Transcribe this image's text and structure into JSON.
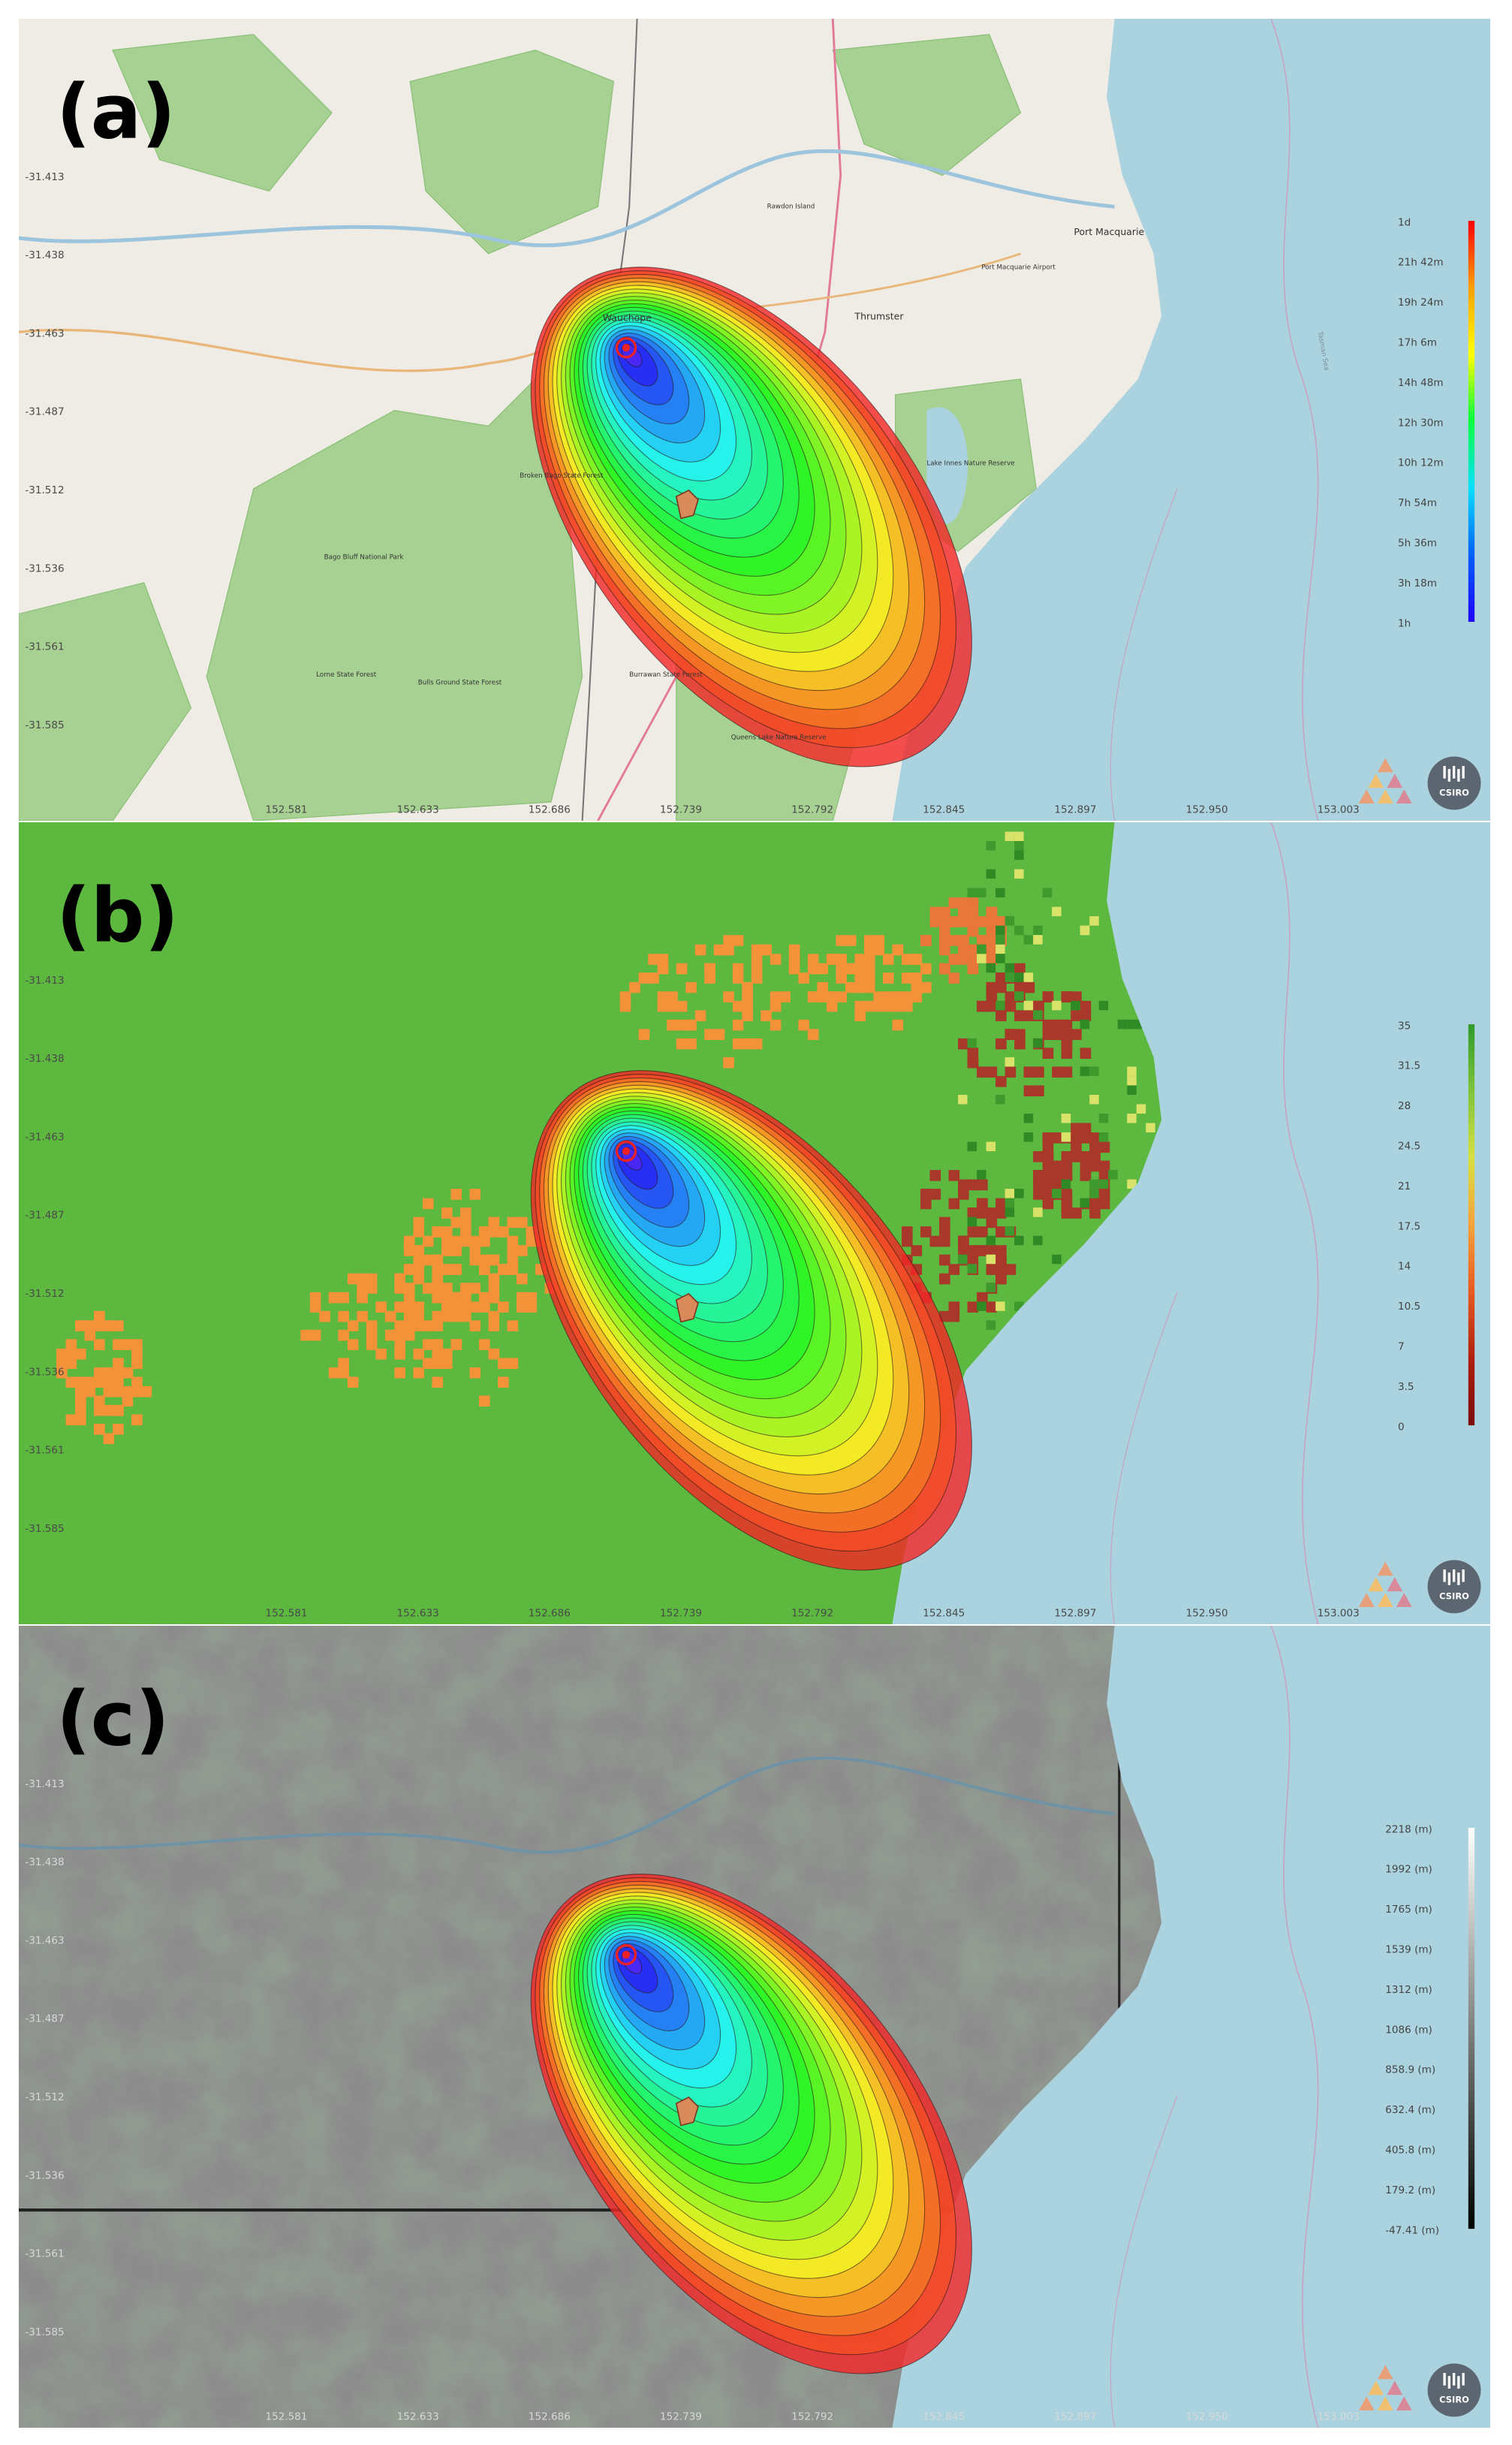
{
  "panels": [
    {
      "label": "(a)",
      "legend": [
        "1d",
        "21h 42m",
        "19h 24m",
        "17h 6m",
        "14h 48m",
        "12h 30m",
        "10h 12m",
        "7h 54m",
        "5h 36m",
        "3h 18m",
        "1h"
      ],
      "places": [
        {
          "name": "Wauchope"
        },
        {
          "name": "Port Macquarie"
        },
        {
          "name": "Thrumster"
        },
        {
          "name": "Rawdon Island"
        },
        {
          "name": "Port Macquarie Airport"
        },
        {
          "name": "Lake Innes Nature Reserve"
        },
        {
          "name": "Broken Bago State Forest"
        },
        {
          "name": "Bago Bluff National Park"
        },
        {
          "name": "Lorne State Forest"
        },
        {
          "name": "Bulls Ground State Forest"
        },
        {
          "name": "Burrawan State Forest"
        },
        {
          "name": "Queens Lake Nature Reserve"
        },
        {
          "name": "Tasman Sea"
        }
      ]
    },
    {
      "label": "(b)",
      "legend": [
        "35",
        "31.5",
        "28",
        "24.5",
        "21",
        "17.5",
        "14",
        "10.5",
        "7",
        "3.5",
        "0"
      ]
    },
    {
      "label": "(c)",
      "legend": [
        "2218 (m)",
        "1992 (m)",
        "1765 (m)",
        "1539 (m)",
        "1312 (m)",
        "1086 (m)",
        "858.9 (m)",
        "632.4 (m)",
        "405.8 (m)",
        "179.2 (m)",
        "-47.41 (m)"
      ]
    }
  ],
  "lat_labels": [
    "-31.413",
    "-31.438",
    "-31.463",
    "-31.487",
    "-31.512",
    "-31.536",
    "-31.561",
    "-31.585"
  ],
  "lon_labels": [
    "152.581",
    "152.633",
    "152.686",
    "152.739",
    "152.792",
    "152.845",
    "152.897",
    "152.950",
    "153.003"
  ],
  "logo": "CSIRO"
}
